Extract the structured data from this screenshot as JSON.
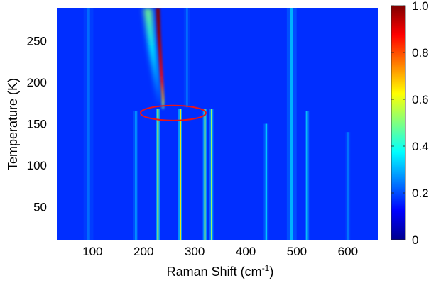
{
  "chart_data": {
    "type": "heatmap",
    "title": "",
    "xlabel": "Raman Shift (cm",
    "xlabel_superscript": "-1",
    "xlabel_suffix": ")",
    "ylabel": "Temperature (K)",
    "xlim": [
      30,
      660
    ],
    "ylim": [
      10,
      290
    ],
    "xticks": [
      100,
      200,
      300,
      400,
      500,
      600
    ],
    "yticks": [
      50,
      100,
      150,
      200,
      250
    ],
    "colorbar": {
      "range": [
        0,
        1.0
      ],
      "ticks": [
        0,
        0.2,
        0.4,
        0.6,
        0.8,
        1.0
      ],
      "tick_labels": [
        "0",
        "0.2",
        "0.4",
        "0.6",
        "0.8",
        "1.0"
      ],
      "colormap": "jet"
    },
    "background_intensity": 0.17,
    "transition_temperature": 165,
    "peaks": [
      {
        "shift": 92,
        "t_min": 10,
        "t_max": 290,
        "width": 6,
        "intensity": 0.06
      },
      {
        "shift": 185,
        "t_min": 10,
        "t_max": 165,
        "width": 3,
        "intensity": 0.13
      },
      {
        "shift": 228,
        "t_min": 10,
        "t_max": 168,
        "width": 2.5,
        "intensity": 0.42
      },
      {
        "shift": 272,
        "t_min": 10,
        "t_max": 168,
        "width": 2.5,
        "intensity": 0.48
      },
      {
        "shift": 320,
        "t_min": 10,
        "t_max": 168,
        "width": 2.5,
        "intensity": 0.38
      },
      {
        "shift": 333,
        "t_min": 10,
        "t_max": 168,
        "width": 2.2,
        "intensity": 0.36
      },
      {
        "shift": 285,
        "t_min": 170,
        "t_max": 290,
        "width": 4,
        "intensity": 0.06
      },
      {
        "shift": 440,
        "t_min": 10,
        "t_max": 150,
        "width": 3,
        "intensity": 0.16
      },
      {
        "shift": 490,
        "t_min": 10,
        "t_max": 290,
        "width": 6,
        "intensity": 0.13
      },
      {
        "shift": 520,
        "t_min": 10,
        "t_max": 165,
        "width": 2.5,
        "intensity": 0.22
      },
      {
        "shift": 600,
        "t_min": 10,
        "t_max": 140,
        "width": 3,
        "intensity": 0.07
      }
    ],
    "soft_mode": {
      "description": "strong peak softening with temperature",
      "points": [
        {
          "temperature": 290,
          "shift": 228,
          "width": 8,
          "intensity": 1.0
        },
        {
          "temperature": 260,
          "shift": 230,
          "width": 7,
          "intensity": 0.98
        },
        {
          "temperature": 230,
          "shift": 233,
          "width": 6,
          "intensity": 0.93
        },
        {
          "temperature": 200,
          "shift": 236,
          "width": 5,
          "intensity": 0.85
        },
        {
          "temperature": 180,
          "shift": 238,
          "width": 4,
          "intensity": 0.7
        },
        {
          "temperature": 168,
          "shift": 238,
          "width": 3,
          "intensity": 0.45
        }
      ]
    },
    "soft_mode_halo": {
      "points": [
        {
          "temperature": 290,
          "shift": 208,
          "width": 16,
          "intensity": 0.5
        },
        {
          "temperature": 260,
          "shift": 213,
          "width": 14,
          "intensity": 0.42
        },
        {
          "temperature": 230,
          "shift": 219,
          "width": 12,
          "intensity": 0.35
        },
        {
          "temperature": 200,
          "shift": 226,
          "width": 9,
          "intensity": 0.28
        },
        {
          "temperature": 175,
          "shift": 232,
          "width": 7,
          "intensity": 0.2
        }
      ]
    },
    "annotation": {
      "type": "ellipse",
      "color": "#e8141c",
      "center_shift": 258,
      "center_temperature": 163,
      "radius_shift": 64,
      "radius_temperature": 9
    }
  }
}
